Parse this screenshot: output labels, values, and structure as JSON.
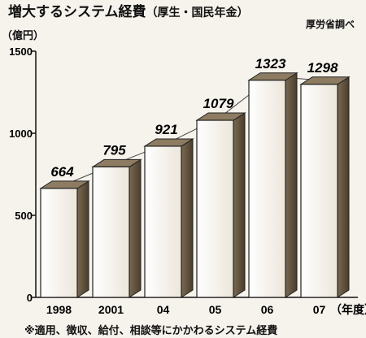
{
  "title": "増大するシステム経費",
  "title_suffix": "（厚生・国民年金）",
  "source": "厚労省調べ",
  "unit": "（億円）",
  "footnote": "※適用、徴収、給付、相談等にかかわるシステム経費",
  "year_unit_label": "（年度）",
  "chart_data": {
    "type": "bar",
    "categories": [
      "1998",
      "2001",
      "04",
      "05",
      "06",
      "07"
    ],
    "values": [
      664,
      795,
      921,
      1079,
      1323,
      1298
    ],
    "ylim": [
      0,
      1500
    ],
    "yticks": [
      0,
      500,
      1000,
      1500
    ],
    "grid": false,
    "style": "3d-bars-with-connecting-line"
  }
}
